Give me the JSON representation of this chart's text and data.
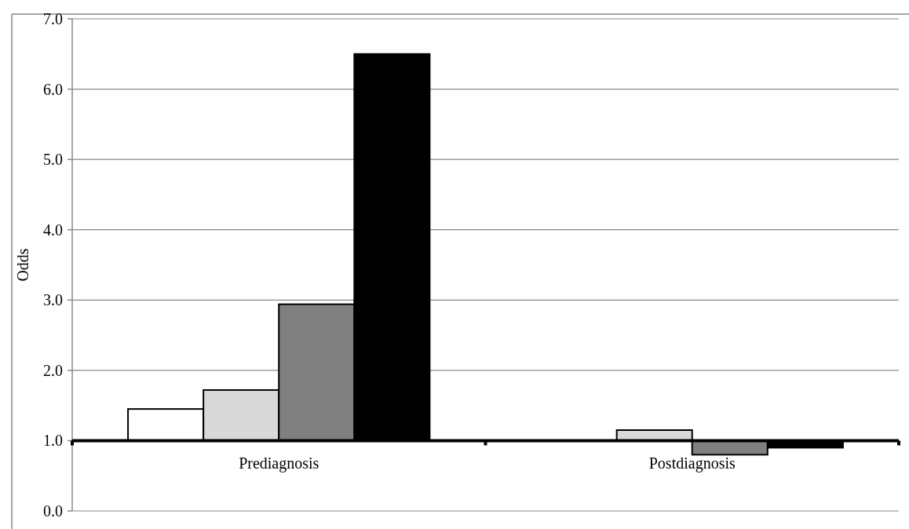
{
  "chart_data": {
    "type": "bar",
    "ylabel": "Odds",
    "categories": [
      "Prediagnosis",
      "Postdiagnosis"
    ],
    "series": [
      {
        "color": "#ffffff",
        "values": [
          0.45,
          null
        ],
        "base": [
          1,
          null
        ]
      },
      {
        "color": "#d9d9d9",
        "values": [
          0.72,
          0.15
        ],
        "base": [
          1,
          1
        ]
      },
      {
        "color": "#808080",
        "values": [
          1.94,
          -0.2
        ],
        "base": [
          1,
          1
        ]
      },
      {
        "color": "#000000",
        "values": [
          5.5,
          -0.1
        ],
        "base": [
          1,
          1
        ]
      }
    ],
    "ylim": [
      0,
      7
    ],
    "yticks": [
      {
        "value": 0,
        "label": "0.0"
      },
      {
        "value": 1,
        "label": "1.0"
      },
      {
        "value": 2,
        "label": "2.0"
      },
      {
        "value": 3,
        "label": "3.0"
      },
      {
        "value": 4,
        "label": "4.0"
      },
      {
        "value": 5,
        "label": "5.0"
      },
      {
        "value": 6,
        "label": "6.0"
      },
      {
        "value": 7,
        "label": "7.0"
      }
    ],
    "grid": "y"
  }
}
